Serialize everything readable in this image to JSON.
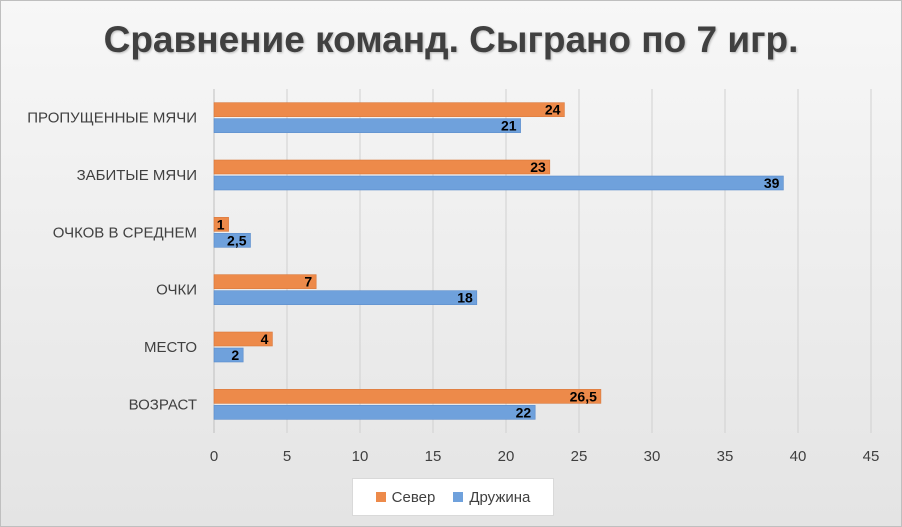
{
  "chart_data": {
    "type": "bar",
    "orientation": "horizontal",
    "title": "Сравнение команд. Сыграно по 7 игр.",
    "categories": [
      "ВОЗРАСТ",
      "МЕСТО",
      "ОЧКИ",
      "ОЧКОВ В СРЕДНЕМ",
      "ЗАБИТЫЕ МЯЧИ",
      "ПРОПУЩЕННЫЕ МЯЧИ"
    ],
    "series": [
      {
        "name": "Север",
        "color": "#ED8A4A",
        "values": [
          26.5,
          4,
          7,
          1,
          23,
          24
        ],
        "labels": [
          "26,5",
          "4",
          "7",
          "1",
          "23",
          "24"
        ]
      },
      {
        "name": "Дружина",
        "color": "#6FA1DC",
        "values": [
          22,
          2,
          18,
          2.5,
          39,
          21
        ],
        "labels": [
          "22",
          "2",
          "18",
          "2,5",
          "39",
          "21"
        ]
      }
    ],
    "xlim": [
      0,
      45
    ],
    "xticks": [
      0,
      5,
      10,
      15,
      20,
      25,
      30,
      35,
      40,
      45
    ],
    "grid": true,
    "legend_position": "bottom"
  }
}
